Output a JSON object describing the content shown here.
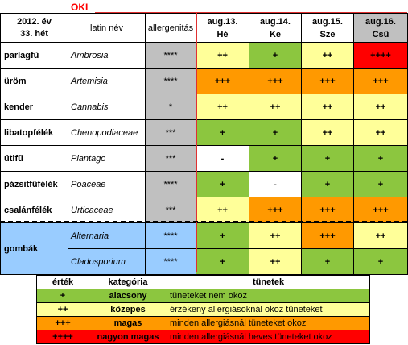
{
  "title": "OKI",
  "header": {
    "year": "2012. év",
    "week": "33. hét",
    "latin_col": "latin név",
    "allergen_col": "allergenitás",
    "days": [
      {
        "date": "aug.13.",
        "day": "Hé"
      },
      {
        "date": "aug.14.",
        "day": "Ke"
      },
      {
        "date": "aug.15.",
        "day": "Sze"
      },
      {
        "date": "aug.16.",
        "day": "Csü"
      }
    ]
  },
  "rows": [
    {
      "name": "parlagfű",
      "latin": "Ambrosia",
      "allergen": "****",
      "levels": [
        "++",
        "+",
        "++",
        "++++"
      ],
      "colors": [
        "mid",
        "low",
        "mid",
        "vhigh"
      ]
    },
    {
      "name": "üröm",
      "latin": "Artemisia",
      "allergen": "****",
      "levels": [
        "+++",
        "+++",
        "+++",
        "+++"
      ],
      "colors": [
        "high",
        "high",
        "high",
        "high"
      ]
    },
    {
      "name": "kender",
      "latin": "Cannabis",
      "allergen": "*",
      "levels": [
        "++",
        "++",
        "++",
        "++"
      ],
      "colors": [
        "mid",
        "mid",
        "mid",
        "mid"
      ]
    },
    {
      "name": "libatopfélék",
      "latin": "Chenopodiaceae",
      "allergen": "***",
      "levels": [
        "+",
        "+",
        "++",
        "++"
      ],
      "colors": [
        "low",
        "low",
        "mid",
        "mid"
      ]
    },
    {
      "name": "útifű",
      "latin": "Plantago",
      "allergen": "***",
      "levels": [
        "-",
        "+",
        "+",
        "+"
      ],
      "colors": [
        "none",
        "low",
        "low",
        "low"
      ]
    },
    {
      "name": "pázsitfűfélék",
      "latin": "Poaceae",
      "allergen": "****",
      "levels": [
        "+",
        "-",
        "+",
        "+"
      ],
      "colors": [
        "low",
        "none",
        "low",
        "low"
      ]
    },
    {
      "name": "csalánfélék",
      "latin": "Urticaceae",
      "allergen": "***",
      "levels": [
        "++",
        "+++",
        "+++",
        "+++"
      ],
      "colors": [
        "mid",
        "high",
        "high",
        "high"
      ]
    }
  ],
  "fungi": {
    "name": "gombák",
    "rows": [
      {
        "latin": "Alternaria",
        "allergen": "****",
        "levels": [
          "+",
          "++",
          "+++",
          "++"
        ],
        "colors": [
          "low",
          "mid",
          "high",
          "mid"
        ]
      },
      {
        "latin": "Cladosporium",
        "allergen": "****",
        "levels": [
          "+",
          "++",
          "+",
          "+"
        ],
        "colors": [
          "low",
          "mid",
          "low",
          "low"
        ]
      }
    ]
  },
  "legend": {
    "headers": {
      "value": "érték",
      "category": "kategória",
      "symptoms": "tünetek"
    },
    "items": [
      {
        "value": "+",
        "category": "alacsony",
        "symptoms": "tüneteket nem okoz",
        "color": "low"
      },
      {
        "value": "++",
        "category": "közepes",
        "symptoms": "érzékeny allergiásoknál okoz tüneteket",
        "color": "mid"
      },
      {
        "value": "+++",
        "category": "magas",
        "symptoms": "minden allergiásnál tüneteket okoz",
        "color": "high"
      },
      {
        "value": "++++",
        "category": "nagyon magas",
        "symptoms": "minden allergiásnál heves tüneteket okoz",
        "color": "vhigh"
      }
    ]
  },
  "colors": {
    "low": "#8cc63f",
    "mid": "#ffff99",
    "high": "#ff9900",
    "vhigh": "#ff0000",
    "fungi_bg": "#99ccff",
    "allergen_bg": "#c0c0c0"
  }
}
